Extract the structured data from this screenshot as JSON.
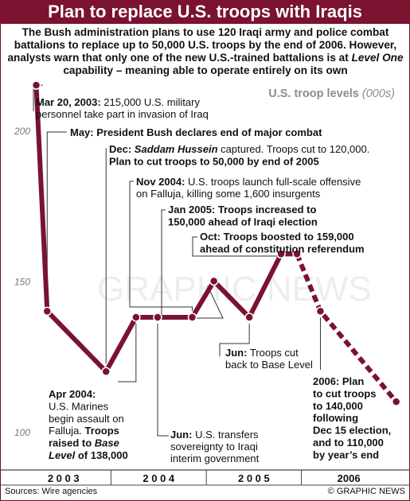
{
  "header": {
    "title": "Plan to replace U.S. troops with Iraqis"
  },
  "intro": {
    "part1": "The Bush administration plans to use 120 Iraqi army and police combat battalions to replace up to 50,000 U.S. troops by the end of 2006. However, analysts warn that only one of the new U.S.-trained battalions is at ",
    "emphasis": "Level One",
    "part2": " capability – meaning able to operate entirely on its own"
  },
  "colors": {
    "accent": "#7a1230",
    "line": "#7a1230",
    "marker": "#ffffff"
  },
  "chart_data": {
    "type": "line",
    "ylabel_main": "U.S. troop levels",
    "ylabel_unit": "(000s)",
    "y_ticks": [
      "200",
      "150",
      "100"
    ],
    "y_tick_values": [
      200,
      150,
      100
    ],
    "ylim": [
      90,
      225
    ],
    "year_labels": [
      "2 0 0 3",
      "2 0 0 4",
      "2 0 0 5",
      "2006"
    ],
    "series": [
      {
        "style": "solid",
        "points": [
          {
            "date": "2003-03-20",
            "value": 215
          },
          {
            "date": "2003-05-01",
            "value": 140
          },
          {
            "date": "2003-12-13",
            "value": 120
          },
          {
            "date": "2004-04-06",
            "value": 138
          },
          {
            "date": "2004-06-28",
            "value": 138
          },
          {
            "date": "2004-11-08",
            "value": 138
          },
          {
            "date": "2005-01-30",
            "value": 150
          },
          {
            "date": "2005-06-15",
            "value": 138
          },
          {
            "date": "2005-10-15",
            "value": 159
          },
          {
            "date": "2005-12-15",
            "value": 159
          }
        ]
      },
      {
        "style": "dashed",
        "points": [
          {
            "date": "2005-12-15",
            "value": 159
          },
          {
            "date": "2006-03-15",
            "value": 140
          },
          {
            "date": "2006-12-31",
            "value": 110
          }
        ]
      }
    ],
    "annotations": [
      {
        "id": "mar2003",
        "lines": [
          [
            {
              "t": "Mar 20, 2003:",
              "s": "b"
            },
            {
              "t": " 215,000 U.S. military",
              "s": ""
            }
          ],
          [
            {
              "t": "personnel take part in invasion of Iraq",
              "s": ""
            }
          ]
        ]
      },
      {
        "id": "may2003",
        "lines": [
          [
            {
              "t": "May: President Bush declares end of major combat",
              "s": "b"
            }
          ]
        ]
      },
      {
        "id": "dec2003",
        "lines": [
          [
            {
              "t": "Dec: ",
              "s": "b"
            },
            {
              "t": "Saddam Hussein",
              "s": "bi"
            },
            {
              "t": " captured. Troops cut to 120,000.",
              "s": ""
            }
          ],
          [
            {
              "t": "Plan to cut troops to 50,000 by end of 2005",
              "s": "b"
            }
          ]
        ]
      },
      {
        "id": "nov2004",
        "lines": [
          [
            {
              "t": "Nov 2004:",
              "s": "b"
            },
            {
              "t": " U.S. troops launch full-scale offensive",
              "s": ""
            }
          ],
          [
            {
              "t": "on Falluja, killing some 1,600 insurgents",
              "s": ""
            }
          ]
        ]
      },
      {
        "id": "jan2005",
        "lines": [
          [
            {
              "t": "Jan 2005: Troops increased to",
              "s": "b"
            }
          ],
          [
            {
              "t": "150,000 ahead of Iraqi election",
              "s": "b"
            }
          ]
        ]
      },
      {
        "id": "oct2005",
        "lines": [
          [
            {
              "t": "Oct: Troops boosted to 159,000",
              "s": "b"
            }
          ],
          [
            {
              "t": "ahead of constitution referendum",
              "s": "b"
            }
          ]
        ]
      },
      {
        "id": "jun2005",
        "lines": [
          [
            {
              "t": "Jun:",
              "s": "b"
            },
            {
              "t": " Troops cut",
              "s": ""
            }
          ],
          [
            {
              "t": "back to Base Level",
              "s": ""
            }
          ]
        ]
      },
      {
        "id": "apr2004",
        "lines": [
          [
            {
              "t": "Apr 2004:",
              "s": "b"
            }
          ],
          [
            {
              "t": "U.S. Marines",
              "s": ""
            }
          ],
          [
            {
              "t": "begin assault on",
              "s": ""
            }
          ],
          [
            {
              "t": "Falluja. ",
              "s": ""
            },
            {
              "t": "Troops",
              "s": "b"
            }
          ],
          [
            {
              "t": "raised to ",
              "s": "b"
            },
            {
              "t": "Base",
              "s": "bi"
            }
          ],
          [
            {
              "t": "Level",
              "s": "bi"
            },
            {
              "t": " of 138,000",
              "s": "b"
            }
          ]
        ]
      },
      {
        "id": "jun2004",
        "lines": [
          [
            {
              "t": "Jun:",
              "s": "b"
            },
            {
              "t": " U.S. transfers",
              "s": ""
            }
          ],
          [
            {
              "t": "sovereignty to Iraqi",
              "s": ""
            }
          ],
          [
            {
              "t": "interim government",
              "s": ""
            }
          ]
        ]
      },
      {
        "id": "plan2006",
        "lines": [
          [
            {
              "t": "2006: Plan",
              "s": "b"
            }
          ],
          [
            {
              "t": "to cut troops",
              "s": "b"
            }
          ],
          [
            {
              "t": "to 140,000",
              "s": "b"
            }
          ],
          [
            {
              "t": "following",
              "s": "b"
            }
          ],
          [
            {
              "t": "Dec 15 election,",
              "s": "b"
            }
          ],
          [
            {
              "t": "and to 110,000",
              "s": "b"
            }
          ],
          [
            {
              "t": "by year’s end",
              "s": "b"
            }
          ]
        ]
      }
    ],
    "watermark": "GRAPHIC NEWS"
  },
  "footer": {
    "sources": "Sources: Wire agencies",
    "credit": "© GRAPHIC NEWS"
  }
}
